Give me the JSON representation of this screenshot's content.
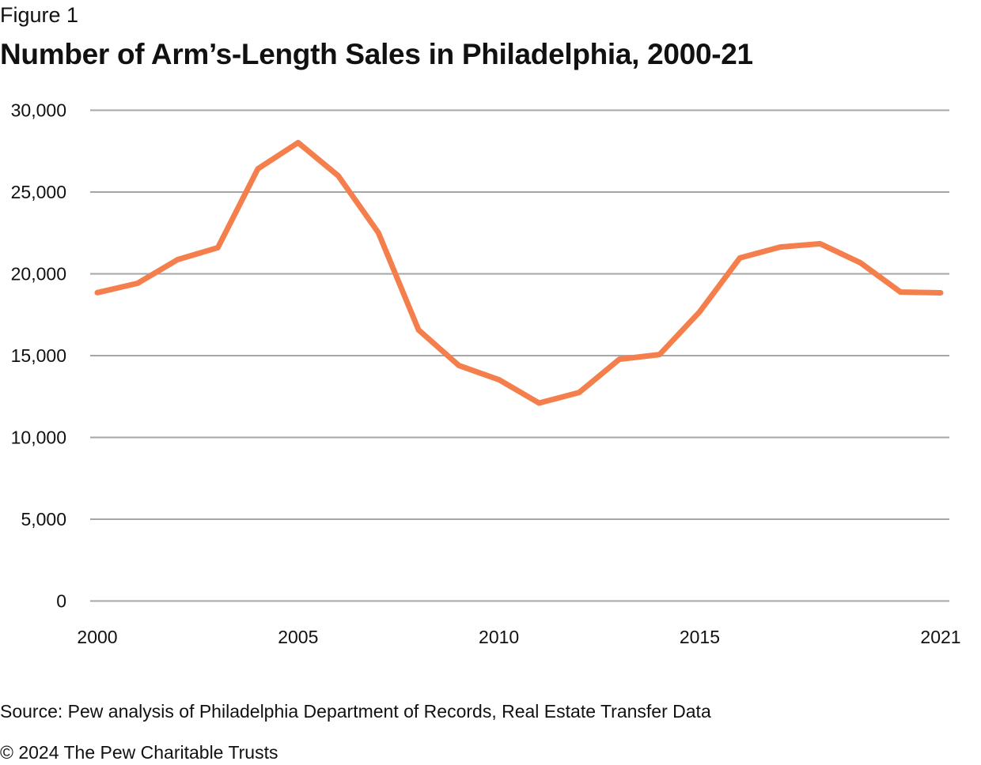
{
  "header": {
    "figure_label": "Figure 1",
    "title": "Number of Arm’s-Length Sales in Philadelphia, 2000-21"
  },
  "footer": {
    "source": "Source: Pew analysis of Philadelphia Department of Records, Real Estate Transfer Data",
    "copyright": "© 2024 The Pew Charitable Trusts"
  },
  "colors": {
    "line": "#F47F4C",
    "grid": "#A6A6A6",
    "text": "#111111"
  },
  "chart_data": {
    "type": "line",
    "title": "Number of Arm’s-Length Sales in Philadelphia, 2000-21",
    "xlabel": "",
    "ylabel": "",
    "x": [
      2000,
      2001,
      2002,
      2003,
      2004,
      2005,
      2006,
      2007,
      2008,
      2009,
      2010,
      2011,
      2012,
      2013,
      2014,
      2015,
      2016,
      2017,
      2018,
      2019,
      2020,
      2021
    ],
    "series": [
      {
        "name": "Arm's-length sales",
        "values": [
          18850,
          19420,
          20870,
          21600,
          26420,
          28020,
          25990,
          22510,
          16570,
          14400,
          13530,
          12100,
          12750,
          14780,
          15070,
          17680,
          20970,
          21640,
          21840,
          20680,
          18890,
          18840
        ]
      }
    ],
    "ylim": [
      0,
      30000
    ],
    "y_ticks": [
      0,
      5000,
      10000,
      15000,
      20000,
      25000,
      30000
    ],
    "y_tick_labels": [
      "0",
      "5,000",
      "10,000",
      "15,000",
      "20,000",
      "25,000",
      "30,000"
    ],
    "x_ticks": [
      2000,
      2005,
      2010,
      2015,
      2021
    ],
    "x_tick_labels": [
      "2000",
      "2005",
      "2010",
      "2015",
      "2021"
    ],
    "grid": true,
    "legend": "none"
  }
}
